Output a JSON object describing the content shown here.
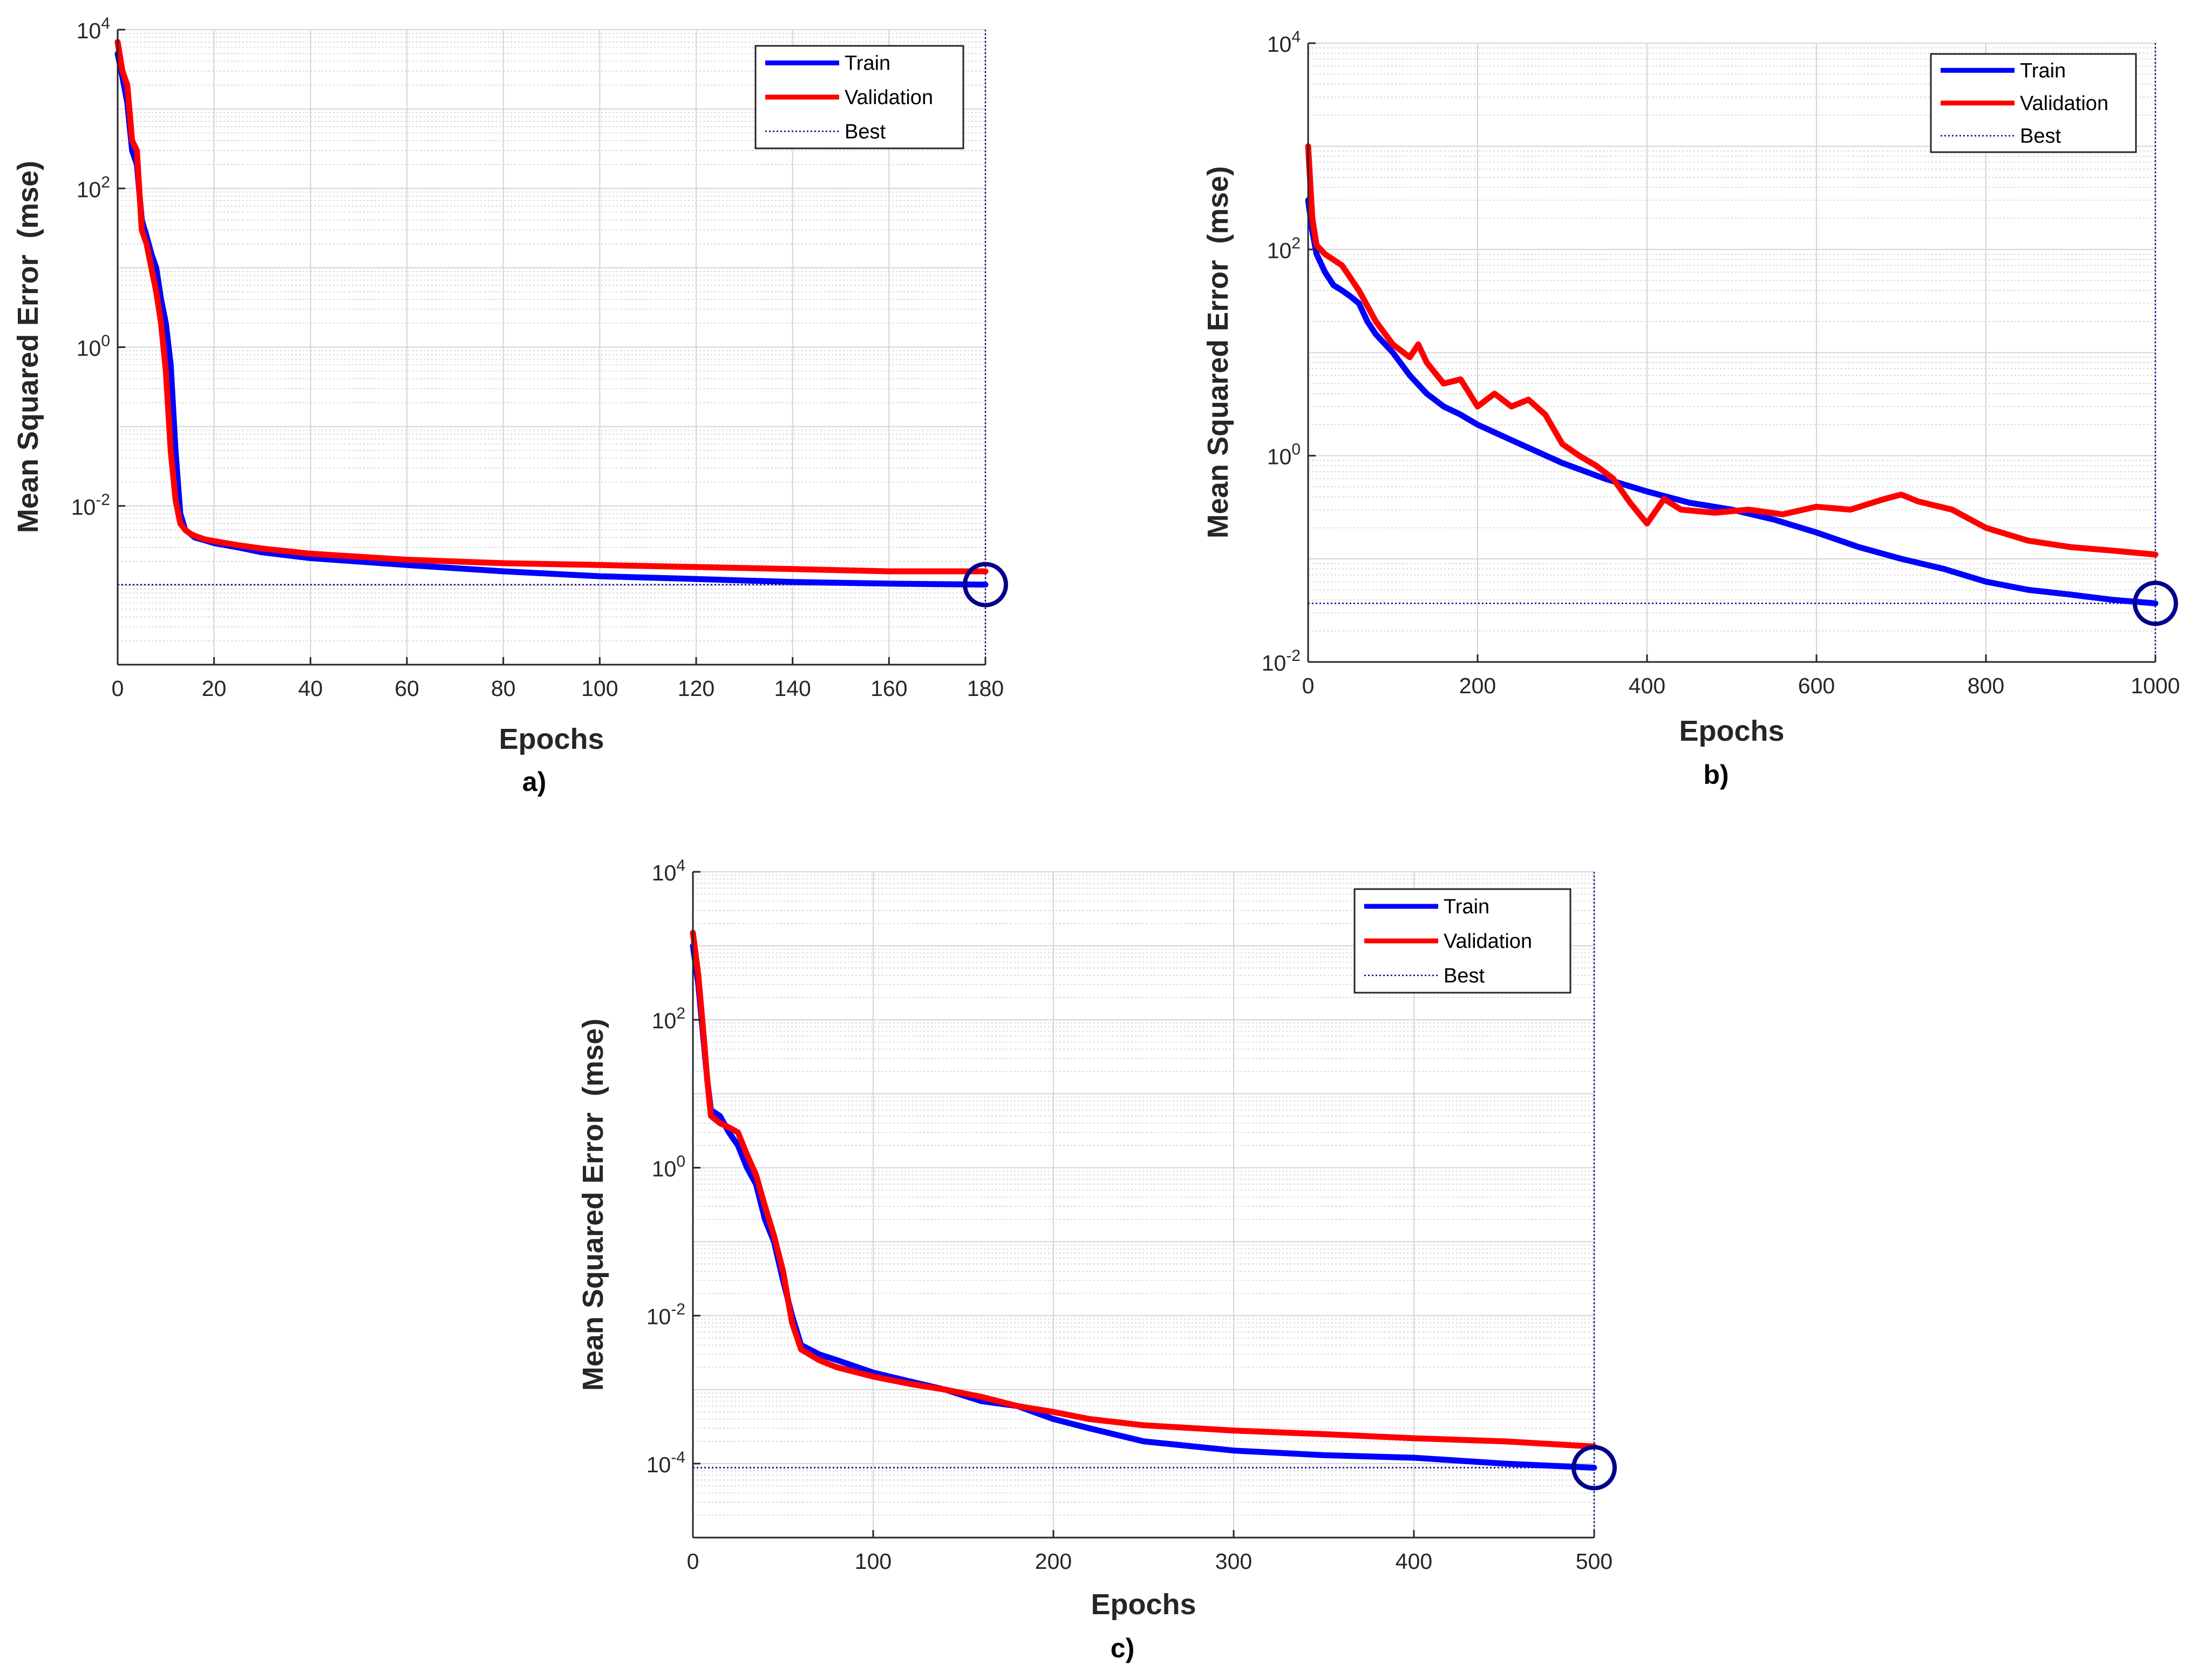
{
  "colors": {
    "train": "#0000ff",
    "validation": "#ff0000",
    "best": "#00008b",
    "grid_major": "#d4d4d4",
    "grid_minor": "#d8d8d8",
    "axis": "#262626"
  },
  "chart_data": [
    {
      "type": "line",
      "panel_label": "a)",
      "xlabel": "Epochs",
      "ylabel": "Mean Squared Error  (mse)",
      "yscale": "log",
      "xlim": [
        0,
        180
      ],
      "ylim": [
        0.0001,
        10000
      ],
      "xticks": [
        0,
        20,
        40,
        60,
        80,
        100,
        120,
        140,
        160,
        180
      ],
      "yticks": [
        {
          "base": "10",
          "exp": "-2"
        },
        {
          "base": "10",
          "exp": "0"
        },
        {
          "base": "10",
          "exp": "2"
        },
        {
          "base": "10",
          "exp": "4"
        }
      ],
      "grid": true,
      "legend": {
        "position": "top-right",
        "entries": [
          "Train",
          "Validation",
          "Best"
        ]
      },
      "best": {
        "epoch": 180,
        "value": 0.00102
      },
      "series": [
        {
          "name": "Train",
          "x": [
            0,
            1,
            2,
            3,
            4,
            5,
            6,
            7,
            8,
            9,
            10,
            11,
            12,
            13,
            14,
            15,
            16,
            18,
            20,
            25,
            30,
            40,
            60,
            80,
            100,
            120,
            140,
            160,
            180
          ],
          "y": [
            5000,
            2500,
            1200,
            300,
            200,
            40,
            25,
            15,
            10,
            4,
            2,
            0.6,
            0.05,
            0.008,
            0.005,
            0.0045,
            0.004,
            0.0037,
            0.0034,
            0.003,
            0.0026,
            0.0022,
            0.0018,
            0.0015,
            0.0013,
            0.0012,
            0.0011,
            0.00105,
            0.00102
          ]
        },
        {
          "name": "Validation",
          "x": [
            0,
            1,
            2,
            3,
            4,
            5,
            6,
            7,
            8,
            9,
            10,
            11,
            12,
            13,
            14,
            15,
            16,
            18,
            20,
            25,
            30,
            40,
            60,
            80,
            100,
            120,
            140,
            160,
            180
          ],
          "y": [
            7000,
            3000,
            2000,
            400,
            300,
            30,
            20,
            10,
            5,
            2,
            0.5,
            0.05,
            0.012,
            0.006,
            0.005,
            0.0045,
            0.0042,
            0.0038,
            0.0036,
            0.0032,
            0.0029,
            0.0025,
            0.0021,
            0.0019,
            0.0018,
            0.0017,
            0.0016,
            0.0015,
            0.0015
          ]
        }
      ]
    },
    {
      "type": "line",
      "panel_label": "b)",
      "xlabel": "Epochs",
      "ylabel": "Mean Squared Error  (mse)",
      "yscale": "log",
      "xlim": [
        0,
        1000
      ],
      "ylim": [
        0.01,
        10000
      ],
      "xticks": [
        0,
        200,
        400,
        600,
        800,
        1000
      ],
      "yticks": [
        {
          "base": "10",
          "exp": "-2"
        },
        {
          "base": "10",
          "exp": "0"
        },
        {
          "base": "10",
          "exp": "2"
        },
        {
          "base": "10",
          "exp": "4"
        }
      ],
      "grid": true,
      "legend": {
        "position": "top-right",
        "entries": [
          "Train",
          "Validation",
          "Best"
        ]
      },
      "best": {
        "epoch": 1000,
        "value": 0.037
      },
      "series": [
        {
          "name": "Train",
          "x": [
            0,
            5,
            10,
            20,
            30,
            40,
            50,
            60,
            70,
            80,
            100,
            120,
            140,
            160,
            180,
            200,
            250,
            300,
            350,
            400,
            450,
            500,
            550,
            600,
            650,
            700,
            750,
            800,
            850,
            900,
            950,
            1000
          ],
          "y": [
            300,
            150,
            90,
            60,
            45,
            40,
            35,
            30,
            20,
            15,
            10,
            6,
            4,
            3,
            2.5,
            2,
            1.3,
            0.85,
            0.6,
            0.45,
            0.35,
            0.3,
            0.24,
            0.18,
            0.13,
            0.1,
            0.08,
            0.06,
            0.05,
            0.045,
            0.04,
            0.037
          ]
        },
        {
          "name": "Validation",
          "x": [
            0,
            5,
            10,
            20,
            40,
            60,
            80,
            100,
            120,
            130,
            140,
            160,
            180,
            200,
            220,
            240,
            260,
            280,
            300,
            320,
            340,
            360,
            380,
            400,
            420,
            440,
            480,
            520,
            560,
            600,
            640,
            680,
            700,
            720,
            760,
            800,
            850,
            900,
            950,
            1000
          ],
          "y": [
            1000,
            200,
            110,
            90,
            70,
            40,
            20,
            12,
            9,
            12,
            8,
            5,
            5.5,
            3,
            4,
            3,
            3.5,
            2.5,
            1.3,
            1,
            0.8,
            0.6,
            0.35,
            0.22,
            0.38,
            0.3,
            0.28,
            0.3,
            0.27,
            0.32,
            0.3,
            0.38,
            0.42,
            0.36,
            0.3,
            0.2,
            0.15,
            0.13,
            0.12,
            0.11
          ]
        }
      ]
    },
    {
      "type": "line",
      "panel_label": "c)",
      "xlabel": "Epochs",
      "ylabel": "Mean Squared Error  (mse)",
      "yscale": "log",
      "xlim": [
        0,
        500
      ],
      "ylim": [
        1e-05,
        10000
      ],
      "xticks": [
        0,
        100,
        200,
        300,
        400,
        500
      ],
      "yticks": [
        {
          "base": "10",
          "exp": "-4"
        },
        {
          "base": "10",
          "exp": "-2"
        },
        {
          "base": "10",
          "exp": "0"
        },
        {
          "base": "10",
          "exp": "2"
        },
        {
          "base": "10",
          "exp": "4"
        }
      ],
      "grid": true,
      "legend": {
        "position": "top-right",
        "entries": [
          "Train",
          "Validation",
          "Best"
        ]
      },
      "best": {
        "epoch": 500,
        "value": 8.8e-05
      },
      "series": [
        {
          "name": "Train",
          "x": [
            0,
            3,
            6,
            8,
            10,
            15,
            20,
            25,
            30,
            35,
            40,
            45,
            50,
            55,
            60,
            70,
            80,
            100,
            120,
            140,
            160,
            180,
            200,
            220,
            250,
            300,
            350,
            400,
            450,
            500
          ],
          "y": [
            1000,
            300,
            50,
            15,
            6,
            5,
            3,
            2,
            1,
            0.6,
            0.2,
            0.1,
            0.03,
            0.01,
            0.004,
            0.003,
            0.0025,
            0.0017,
            0.0013,
            0.001,
            0.0007,
            0.0006,
            0.0004,
            0.0003,
            0.0002,
            0.00015,
            0.00013,
            0.00012,
            0.0001,
            8.8e-05
          ]
        },
        {
          "name": "Validation",
          "x": [
            0,
            3,
            6,
            8,
            10,
            15,
            20,
            25,
            30,
            35,
            40,
            45,
            50,
            55,
            60,
            70,
            80,
            100,
            120,
            140,
            160,
            180,
            200,
            220,
            250,
            300,
            350,
            400,
            450,
            500
          ],
          "y": [
            1500,
            400,
            60,
            15,
            5,
            4,
            3.5,
            3,
            1.5,
            0.8,
            0.3,
            0.12,
            0.04,
            0.008,
            0.0035,
            0.0025,
            0.002,
            0.0015,
            0.0012,
            0.001,
            0.0008,
            0.0006,
            0.0005,
            0.0004,
            0.00033,
            0.00028,
            0.00025,
            0.00022,
            0.0002,
            0.00017
          ]
        }
      ]
    }
  ]
}
